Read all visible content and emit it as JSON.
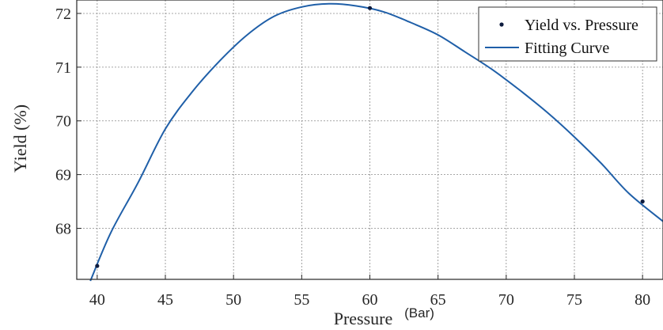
{
  "chart_data": {
    "type": "scatter",
    "xlabel": "Pressure",
    "xlabel_unit": "(Bar)",
    "ylabel": "Yield  (%)",
    "xlim": [
      38.5,
      81.5
    ],
    "ylim": [
      67.05,
      72.25
    ],
    "grid": true,
    "legend_position": "top-right",
    "x_ticks": [
      {
        "value": 40,
        "label": "40"
      },
      {
        "value": 45,
        "label": "45"
      },
      {
        "value": 50,
        "label": "50"
      },
      {
        "value": 55,
        "label": "55"
      },
      {
        "value": 60,
        "label": "60"
      },
      {
        "value": 65,
        "label": "65"
      },
      {
        "value": 70,
        "label": "70"
      },
      {
        "value": 75,
        "label": "75"
      },
      {
        "value": 80,
        "label": "80"
      }
    ],
    "y_ticks": [
      {
        "value": 68,
        "label": "68"
      },
      {
        "value": 69,
        "label": "69"
      },
      {
        "value": 70,
        "label": "70"
      },
      {
        "value": 71,
        "label": "71"
      },
      {
        "value": 72,
        "label": "72"
      }
    ],
    "series": [
      {
        "name": "Yield vs. Pressure",
        "kind": "scatter",
        "color": "#0d1b3e",
        "x": [
          40,
          60,
          80
        ],
        "y": [
          67.3,
          72.1,
          68.5
        ]
      },
      {
        "name": "Fitting Curve",
        "kind": "line",
        "color": "#1f5fa8",
        "x": [
          39.5,
          41,
          43,
          45,
          47,
          49,
          51,
          53,
          55,
          57,
          59,
          61,
          63,
          65,
          67,
          69,
          71,
          73,
          75,
          77,
          79,
          81.5
        ],
        "y": [
          67.02,
          67.92,
          68.85,
          69.85,
          70.55,
          71.12,
          71.6,
          71.95,
          72.12,
          72.18,
          72.14,
          72.03,
          71.83,
          71.6,
          71.28,
          70.95,
          70.57,
          70.16,
          69.7,
          69.2,
          68.65,
          68.13
        ]
      }
    ]
  }
}
